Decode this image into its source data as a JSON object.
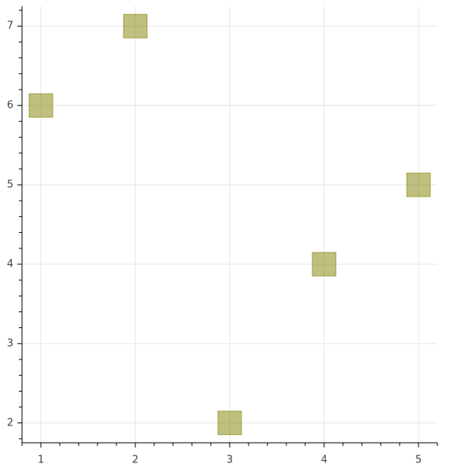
{
  "chart_data": {
    "type": "scatter",
    "marker": "square",
    "x": [
      1,
      2,
      3,
      4,
      5
    ],
    "values": [
      6,
      7,
      2,
      4,
      5
    ],
    "color": "#808000",
    "fill_alpha": 0.5,
    "xlim": [
      0.8,
      5.2
    ],
    "ylim": [
      1.75,
      7.25
    ],
    "xticks": [
      1,
      2,
      3,
      4,
      5
    ],
    "yticks": [
      2,
      3,
      4,
      5,
      6,
      7
    ],
    "xminor_ticks": [
      0.8,
      1.2,
      1.4,
      1.6,
      1.8,
      2.2,
      2.4,
      2.6,
      2.8,
      3.2,
      3.4,
      3.6,
      3.8,
      4.2,
      4.4,
      4.6,
      4.8,
      5.2
    ],
    "yminor_ticks": [
      1.8,
      2.2,
      2.4,
      2.6,
      2.8,
      3.2,
      3.4,
      3.6,
      3.8,
      4.2,
      4.4,
      4.6,
      4.8,
      5.2,
      5.4,
      5.6,
      5.8,
      6.2,
      6.4,
      6.6,
      6.8,
      7.2
    ],
    "grid": true
  }
}
